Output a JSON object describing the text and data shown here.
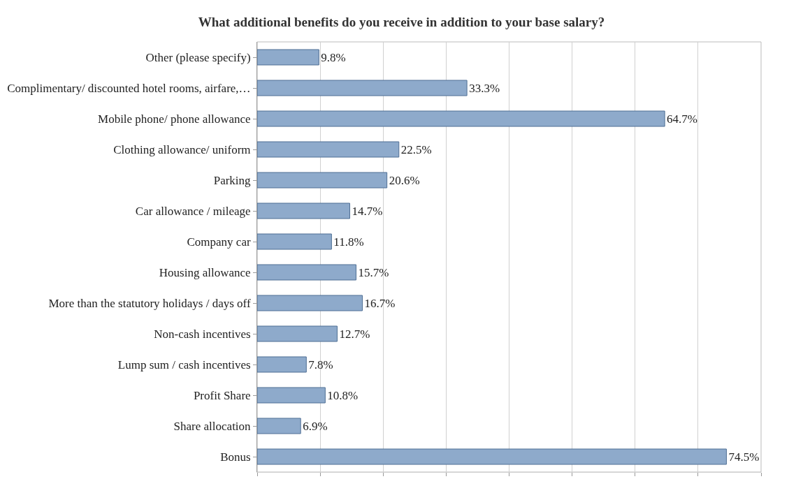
{
  "chart_data": {
    "type": "bar",
    "orientation": "horizontal",
    "title": "What additional benefits do you receive in addition to your base salary?",
    "categories": [
      "Other (please specify)",
      "Complimentary/ discounted hotel rooms, airfare,…",
      "Mobile phone/ phone allowance",
      "Clothing allowance/ uniform",
      "Parking",
      "Car allowance / mileage",
      "Company car",
      "Housing allowance",
      "More than the statutory holidays / days off",
      "Non-cash incentives",
      "Lump sum / cash incentives",
      "Profit Share",
      "Share allocation",
      "Bonus"
    ],
    "values": [
      9.8,
      33.3,
      64.7,
      22.5,
      20.6,
      14.7,
      11.8,
      15.7,
      16.7,
      12.7,
      7.8,
      10.8,
      6.9,
      74.5
    ],
    "value_labels": [
      "9.8%",
      "33.3%",
      "64.7%",
      "22.5%",
      "20.6%",
      "14.7%",
      "11.8%",
      "15.7%",
      "16.7%",
      "12.7%",
      "7.8%",
      "10.8%",
      "6.9%",
      "74.5%"
    ],
    "color": "#8eaacb",
    "xlim": [
      0,
      80
    ],
    "xticks": [
      {
        "value": 0,
        "label": null
      },
      {
        "value": 10,
        "label": null
      },
      {
        "value": 20,
        "label": null
      },
      {
        "value": 30,
        "label": null
      },
      {
        "value": 40,
        "label": null
      },
      {
        "value": 50,
        "label": null
      },
      {
        "value": 60,
        "label": null
      },
      {
        "value": 70,
        "label": null
      },
      {
        "value": 80,
        "label": null
      }
    ],
    "grid": "x",
    "tick_labels": "y",
    "legend": false
  }
}
